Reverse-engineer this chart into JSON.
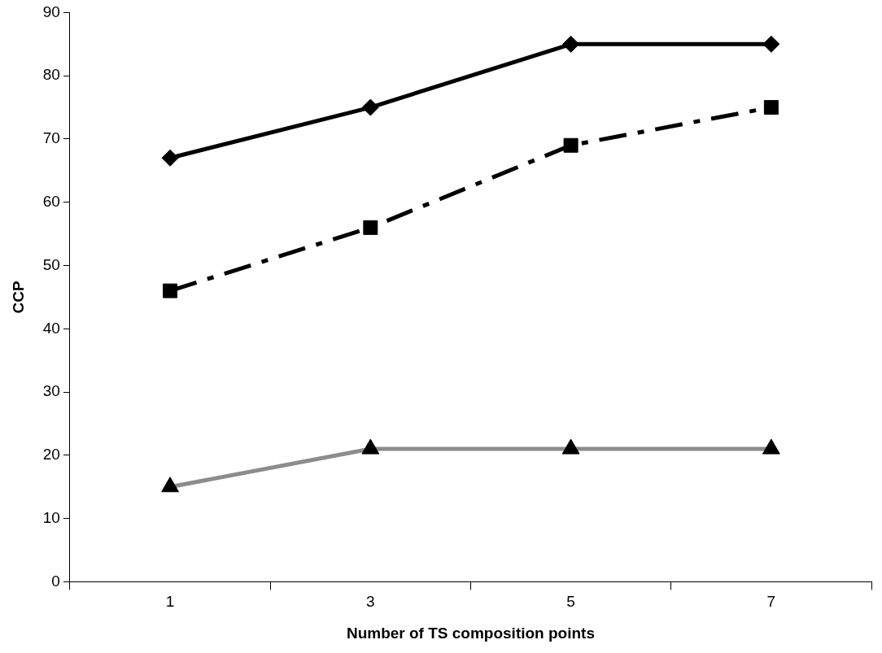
{
  "chart_data": {
    "type": "line",
    "xlabel": "Number of TS composition points",
    "ylabel": "CCP",
    "categories": [
      "1",
      "3",
      "5",
      "7"
    ],
    "ylim": [
      0,
      90
    ],
    "yticks": [
      0,
      10,
      20,
      30,
      40,
      50,
      60,
      70,
      80,
      90
    ],
    "grid": false,
    "legend": false,
    "series": [
      {
        "color": "#000000",
        "marker": "diamond",
        "line_style": "solid",
        "values": [
          67,
          75,
          85,
          85
        ]
      },
      {
        "color": "#000000",
        "marker": "square",
        "line_style": "dashed",
        "values": [
          46,
          56,
          69,
          75
        ]
      },
      {
        "color": "#8c8c8c",
        "marker": "triangle",
        "line_style": "solid",
        "values": [
          15,
          21,
          21,
          21
        ]
      }
    ]
  }
}
